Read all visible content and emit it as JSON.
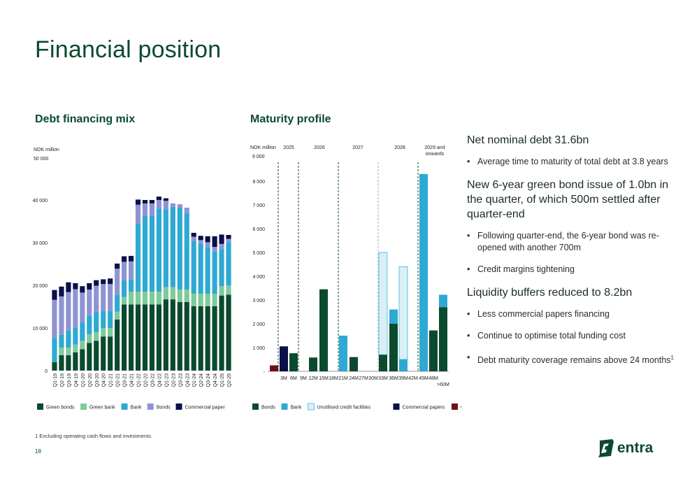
{
  "page": {
    "title": "Financial position",
    "page_number": "18",
    "footnote": "1  Excluding operating cash flows and investments.",
    "logo_text": "entra"
  },
  "colors": {
    "green_bonds": "#0b4a2e",
    "green_bank": "#7dcb9a",
    "bank": "#2ea9d3",
    "bonds": "#8e94d2",
    "commercial_paper": "#0b0f4a",
    "unutilised": "#d8f0f5",
    "cash": "#6b1210"
  },
  "sections": {
    "left_title": "Debt financing mix",
    "mid_title": "Maturity profile"
  },
  "text_panel": {
    "items": [
      {
        "type": "heading",
        "text": "Net nominal debt 31.6bn"
      },
      {
        "type": "bullet",
        "text": "Average time to maturity of total debt at 3.8 years"
      },
      {
        "type": "heading",
        "text": "New 6-year green bond issue of 1.0bn in the quarter, of which 500m settled after quarter-end"
      },
      {
        "type": "bullet",
        "text": "Following quarter-end, the 6-year bond was re-opened with another 700m"
      },
      {
        "type": "bullet",
        "text": "Credit margins tightening"
      },
      {
        "type": "heading",
        "text": "Liquidity buffers reduced to 8.2bn"
      },
      {
        "type": "bullet",
        "text": "Less commercial papers financing"
      },
      {
        "type": "bullet",
        "text": "Continue to optimise total funding cost"
      },
      {
        "type": "bullet",
        "text": "Debt maturity coverage remains above 24 months",
        "sup": "1"
      }
    ]
  },
  "chart_data": [
    {
      "type": "bar",
      "stacked": true,
      "ylabel": "NOK million",
      "ylim": [
        0,
        50000
      ],
      "yticks": [
        0,
        10000,
        20000,
        30000,
        40000,
        50000
      ],
      "ytick_labels": [
        "0",
        "10 000",
        "20 000",
        "30 000",
        "40 000",
        "50 000"
      ],
      "legend_position": "bottom",
      "categories": [
        "Q1-19",
        "Q2-19",
        "Q3-19",
        "Q4-19",
        "Q1-20",
        "Q2-20",
        "Q3-20",
        "Q4-20",
        "Q1-21",
        "Q2-21",
        "Q3-21",
        "Q4-21",
        "Q1-22",
        "Q2-22",
        "Q3-22",
        "Q4-22",
        "Q1-23",
        "Q2-23",
        "Q3-23",
        "Q4-23",
        "Q1-24",
        "Q2-24",
        "Q3-24",
        "Q4-24",
        "Q1-25",
        "Q2-25"
      ],
      "series": [
        {
          "name": "Green bonds",
          "color_key": "green_bonds",
          "values": [
            2000,
            3600,
            3600,
            4300,
            5000,
            6500,
            7000,
            8000,
            8000,
            12000,
            15500,
            15500,
            15500,
            15500,
            15500,
            15500,
            16700,
            16700,
            16100,
            16100,
            15100,
            15100,
            15100,
            15100,
            17600,
            17800
          ]
        },
        {
          "name": "Green bank",
          "color_key": "green_bank",
          "values": [
            0,
            1800,
            1800,
            1800,
            2000,
            2000,
            2000,
            2000,
            2000,
            1800,
            1800,
            3000,
            3000,
            3000,
            3000,
            3000,
            2900,
            2900,
            2900,
            2900,
            2900,
            2900,
            2900,
            2900,
            2200,
            2200
          ]
        },
        {
          "name": "Bank",
          "color_key": "bank",
          "values": [
            5600,
            3000,
            4000,
            4000,
            4300,
            4400,
            4700,
            4000,
            4000,
            3900,
            3900,
            2800,
            15900,
            17800,
            17800,
            19500,
            18200,
            18800,
            19100,
            18000,
            12400,
            11800,
            10900,
            10000,
            8700,
            10100
          ]
        },
        {
          "name": "Bonds",
          "color_key": "bonds",
          "values": [
            9000,
            9000,
            9000,
            9000,
            7000,
            6100,
            6200,
            6300,
            6300,
            6200,
            4300,
            4300,
            4500,
            2900,
            2900,
            2000,
            2000,
            800,
            900,
            1200,
            1000,
            800,
            1200,
            1000,
            1200,
            800
          ]
        },
        {
          "name": "Commercial paper",
          "color_key": "commercial_paper",
          "values": [
            2300,
            2300,
            2300,
            1400,
            1500,
            1500,
            1300,
            1100,
            1300,
            1200,
            1300,
            1300,
            1200,
            800,
            800,
            800,
            600,
            0,
            0,
            0,
            900,
            1000,
            1400,
            2500,
            2200,
            900
          ]
        }
      ]
    },
    {
      "type": "bar",
      "ylabel": "NOK million",
      "ylim": [
        0,
        9000
      ],
      "yticks": [
        0,
        1000,
        2000,
        3000,
        4000,
        5000,
        6000,
        7000,
        8000,
        9000
      ],
      "ytick_labels": [
        "-",
        "1 000",
        "2 000",
        "3 000",
        "4 000",
        "5 000",
        "6 000",
        "7 000",
        "8 000",
        "9 000"
      ],
      "legend_position": "bottom",
      "year_labels": [
        "2025",
        "2026",
        "2027",
        "2028",
        "2029 and onwards"
      ],
      "categories": [
        "Cash",
        "3M",
        "6M",
        "9M",
        "12M",
        "15M",
        "18M",
        "21M",
        "24M",
        "27M",
        "30M",
        "33M",
        "36M",
        "39M",
        "42M",
        "45M",
        "48M",
        ">60M"
      ],
      "tick_labels": [
        "3M",
        "6M",
        "9M",
        "12M",
        "15M",
        "18M",
        "21M",
        "24M",
        "27M",
        "30M",
        "33M",
        "36M",
        "39M",
        "42M",
        "45M",
        "48M",
        ">60M"
      ],
      "series": [
        {
          "name": "Bonds",
          "color_key": "green_bonds",
          "values": [
            0,
            0,
            760,
            0,
            580,
            3450,
            0,
            0,
            600,
            0,
            0,
            700,
            2000,
            0,
            0,
            0,
            1720,
            2700
          ]
        },
        {
          "name": "Bank",
          "color_key": "bank",
          "values": [
            0,
            0,
            0,
            0,
            0,
            0,
            0,
            1500,
            0,
            0,
            0,
            0,
            600,
            500,
            0,
            8300,
            0,
            520
          ]
        },
        {
          "name": "Unutilised credit facilities",
          "color_key": "unutilised",
          "values": [
            0,
            0,
            0,
            0,
            0,
            0,
            0,
            0,
            0,
            0,
            0,
            4300,
            0,
            3900,
            0,
            0,
            0,
            0
          ]
        },
        {
          "name": "Commercial papers",
          "color_key": "commercial_paper",
          "values": [
            0,
            1050,
            0,
            0,
            0,
            0,
            0,
            0,
            0,
            0,
            0,
            0,
            0,
            0,
            0,
            0,
            0,
            0
          ]
        },
        {
          "name": "Cash",
          "color_key": "cash",
          "values": [
            250,
            0,
            0,
            0,
            0,
            0,
            0,
            0,
            0,
            0,
            0,
            0,
            0,
            0,
            0,
            0,
            0,
            0
          ]
        }
      ]
    }
  ]
}
